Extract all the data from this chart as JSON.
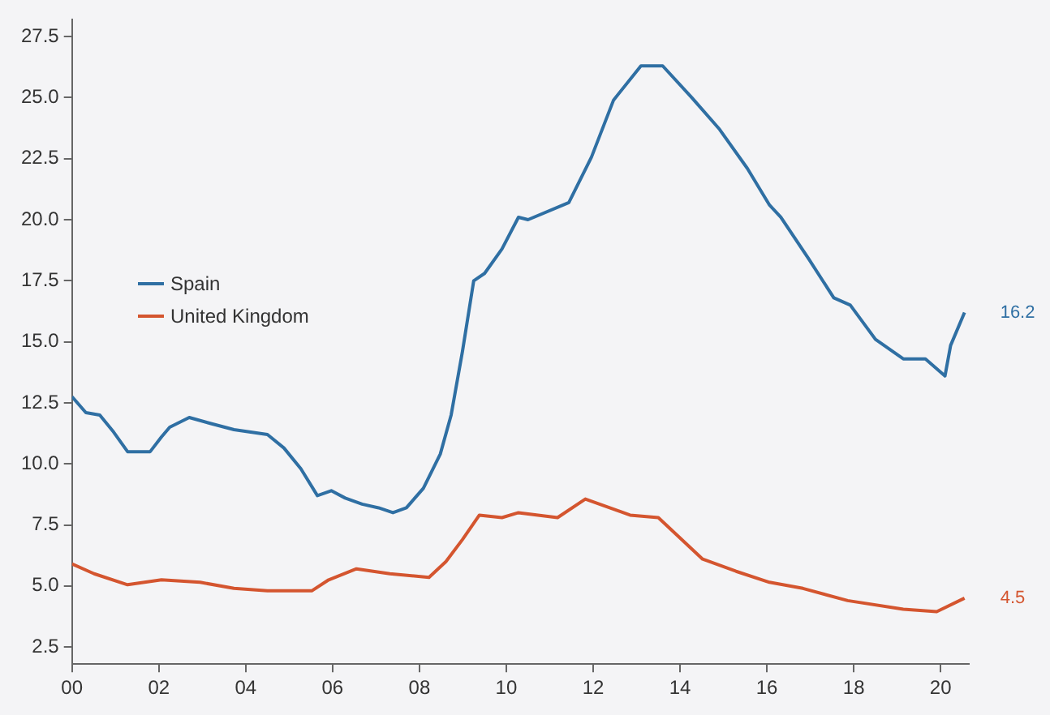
{
  "chart_data": {
    "type": "line",
    "xlim": [
      2000,
      2020.65
    ],
    "ylim": [
      1.8,
      28.2
    ],
    "xticks": [
      {
        "value": 2000,
        "label": "00"
      },
      {
        "value": 2002,
        "label": "02"
      },
      {
        "value": 2004,
        "label": "04"
      },
      {
        "value": 2006,
        "label": "06"
      },
      {
        "value": 2008,
        "label": "08"
      },
      {
        "value": 2010,
        "label": "10"
      },
      {
        "value": 2012,
        "label": "12"
      },
      {
        "value": 2014,
        "label": "14"
      },
      {
        "value": 2016,
        "label": "16"
      },
      {
        "value": 2018,
        "label": "18"
      },
      {
        "value": 2020,
        "label": "20"
      }
    ],
    "yticks": [
      2.5,
      {
        "value": 5,
        "label": "5.0"
      },
      7.5,
      {
        "value": 10,
        "label": "10.0"
      },
      12.5,
      {
        "value": 15,
        "label": "15.0"
      },
      17.5,
      {
        "value": 20,
        "label": "20.0"
      },
      22.5,
      {
        "value": 25,
        "label": "25.0"
      },
      27.5
    ],
    "grid": false,
    "legend": "left",
    "marker": "none",
    "line_style": "solid",
    "series": [
      {
        "name": "Spain",
        "color": "#2f6fa3",
        "x": [
          2000,
          2000.32,
          2000.64,
          2000.96,
          2001.28,
          2001.8,
          2002.06,
          2002.25,
          2002.7,
          2003.2,
          2003.73,
          2004.5,
          2004.88,
          2005.27,
          2005.65,
          2005.97,
          2006.29,
          2006.68,
          2007.06,
          2007.39,
          2007.7,
          2008.09,
          2008.48,
          2008.73,
          2008.99,
          2009.25,
          2009.5,
          2009.9,
          2010.28,
          2010.5,
          2011.44,
          2011.96,
          2012.47,
          2013.1,
          2013.6,
          2014.27,
          2014.91,
          2015.55,
          2016.06,
          2016.32,
          2016.96,
          2017.54,
          2017.92,
          2018.5,
          2019.14,
          2019.65,
          2020.1,
          2020.23,
          2020.55
        ],
        "values": [
          12.75,
          12.1,
          12.0,
          11.3,
          10.5,
          10.5,
          11.1,
          11.5,
          11.9,
          11.65,
          11.4,
          11.2,
          10.65,
          9.8,
          8.7,
          8.9,
          8.6,
          8.35,
          8.2,
          8.0,
          8.2,
          9.0,
          10.4,
          12.0,
          14.6,
          17.5,
          17.8,
          18.8,
          20.1,
          20.0,
          20.7,
          22.56,
          24.9,
          26.3,
          26.3,
          25.0,
          23.7,
          22.1,
          20.6,
          20.1,
          18.4,
          16.8,
          16.5,
          15.1,
          14.3,
          14.3,
          13.6,
          14.85,
          16.2
        ]
      },
      {
        "name": "United Kingdom",
        "color": "#d4552f",
        "x": [
          2000,
          2000.51,
          2001.28,
          2002.06,
          2002.95,
          2003.73,
          2004.5,
          2005.52,
          2005.91,
          2006.55,
          2007.32,
          2008.22,
          2008.61,
          2008.99,
          2009.38,
          2009.9,
          2010.28,
          2011.18,
          2011.82,
          2012.85,
          2013.5,
          2014.52,
          2015.29,
          2016.06,
          2016.83,
          2017.86,
          2019.14,
          2019.91,
          2020.55
        ],
        "values": [
          5.9,
          5.5,
          5.05,
          5.25,
          5.15,
          4.9,
          4.8,
          4.8,
          5.25,
          5.7,
          5.5,
          5.35,
          6.0,
          6.9,
          7.9,
          7.8,
          8.0,
          7.8,
          8.56,
          7.9,
          7.8,
          6.1,
          5.6,
          5.15,
          4.9,
          4.4,
          4.05,
          3.95,
          4.5
        ]
      }
    ],
    "annotations": [
      {
        "text": "16.2",
        "x": 2020.55,
        "y": 16.2
      },
      {
        "text": "4.5",
        "x": 2020.55,
        "y": 4.5
      }
    ]
  }
}
